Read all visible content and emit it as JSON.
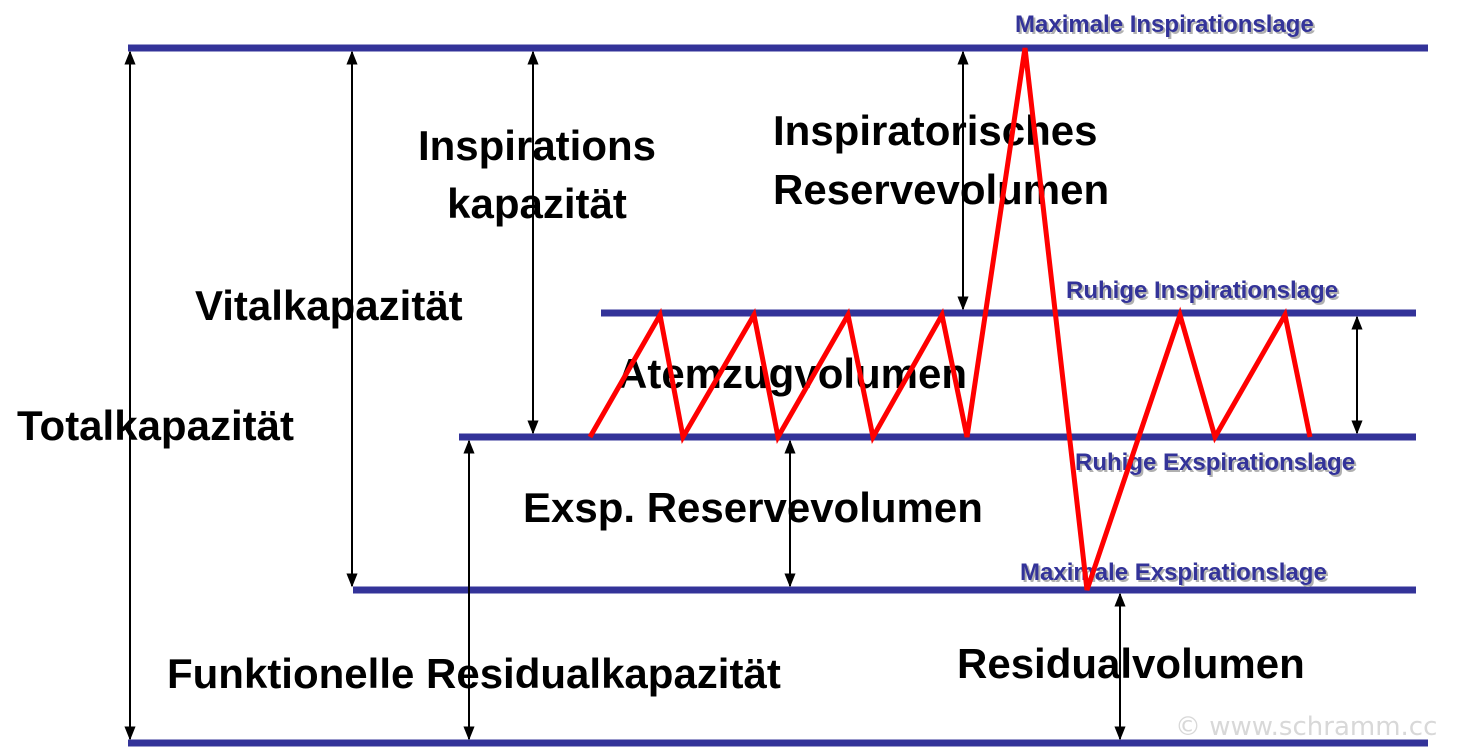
{
  "levels": [
    "Maximale Inspirationslage",
    "Ruhige Inspirationslage",
    "Ruhige Exspirationslage",
    "Maximale Exspirationslage"
  ],
  "volumes": {
    "inspirationskapazitaet": [
      "Inspirations",
      "kapazität"
    ],
    "inspiratorisches_reservevolumen": [
      "Inspiratorisches",
      "Reservevolumen"
    ],
    "vitalkapazitaet": "Vitalkapazität",
    "totalkapazitaet": "Totalkapazität",
    "atemzugvolumen": "Atemzugvolumen",
    "exsp_reservevolumen": "Exsp. Reservevolumen",
    "funktionelle_residualkapazitaet": "Funktionelle Residualkapazität",
    "residualvolumen": "Residualvolumen"
  },
  "copyright": "© www.schramm.cc"
}
